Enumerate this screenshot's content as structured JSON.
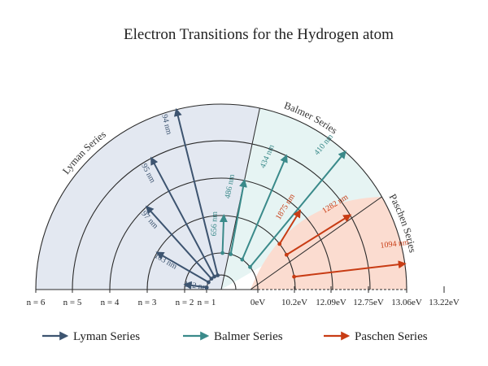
{
  "title": "Electron Transitions for the Hydrogen atom",
  "series_labels": {
    "lyman": "Lyman Series",
    "balmer": "Balmer Series",
    "paschen": "Paschen Series"
  },
  "colors": {
    "lyman": "#3d5470",
    "balmer": "#3a8a8a",
    "paschen": "#c83c14",
    "lyman_bg": "#e3e8f1",
    "balmer_bg": "#e6f4f3",
    "paschen_bg": "#fbdcd0",
    "circle": "#2a2a2a"
  },
  "axis_labels": {
    "left": [
      "n = 6",
      "n = 5",
      "n = 4",
      "n = 3",
      "n = 2",
      "n = 1"
    ],
    "right": [
      "0eV",
      "10.2eV",
      "12.09eV",
      "12.75eV",
      "13.06eV",
      "13.22eV"
    ]
  },
  "chart_data": {
    "type": "diagram",
    "levels": [
      "n = 1",
      "n = 2",
      "n = 3",
      "n = 4",
      "n = 5",
      "n = 6"
    ],
    "energies_eV": [
      "0eV",
      "10.2eV",
      "12.09eV",
      "12.75eV",
      "13.06eV",
      "13.22eV"
    ],
    "transitions": [
      {
        "series": "lyman",
        "from": 1,
        "to": 2,
        "label": "122 nm"
      },
      {
        "series": "lyman",
        "from": 1,
        "to": 3,
        "label": "103 nm"
      },
      {
        "series": "lyman",
        "from": 1,
        "to": 4,
        "label": "97 nm"
      },
      {
        "series": "lyman",
        "from": 1,
        "to": 5,
        "label": "95 nm"
      },
      {
        "series": "lyman",
        "from": 1,
        "to": 6,
        "label": "94 nm"
      },
      {
        "series": "balmer",
        "from": 2,
        "to": 3,
        "label": "656 nm"
      },
      {
        "series": "balmer",
        "from": 2,
        "to": 4,
        "label": "486 nm"
      },
      {
        "series": "balmer",
        "from": 2,
        "to": 5,
        "label": "434 nm"
      },
      {
        "series": "balmer",
        "from": 2,
        "to": 6,
        "label": "410 nm"
      },
      {
        "series": "paschen",
        "from": 3,
        "to": 4,
        "label": "1875 nm"
      },
      {
        "series": "paschen",
        "from": 3,
        "to": 5,
        "label": "1282 nm"
      },
      {
        "series": "paschen",
        "from": 3,
        "to": 6,
        "label": "1094 nm"
      }
    ]
  }
}
